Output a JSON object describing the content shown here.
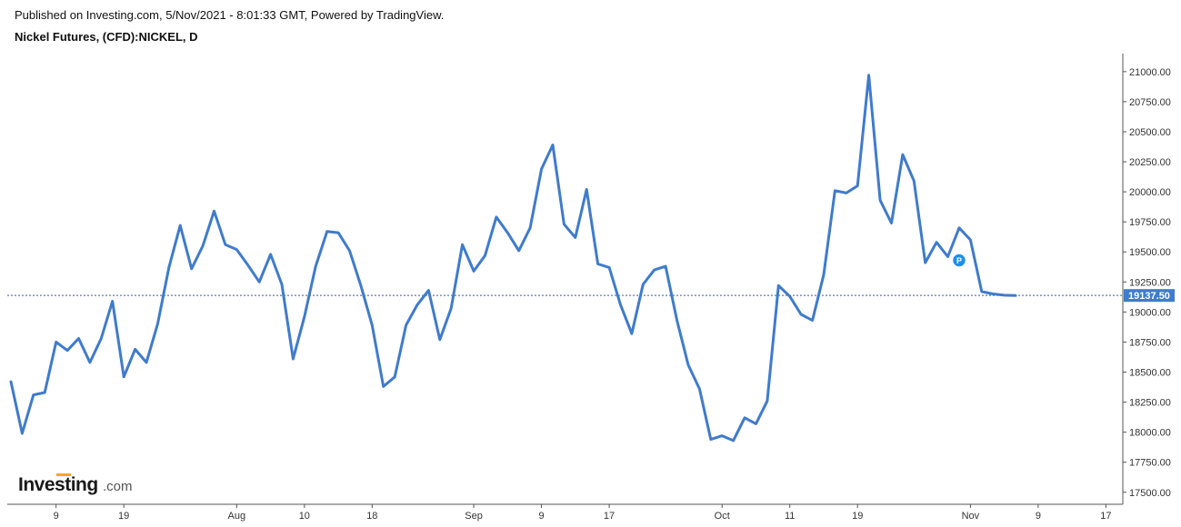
{
  "header": {
    "published": "Published on Investing.com, 5/Nov/2021 - 8:01:33 GMT, Powered by TradingView.",
    "title": "Nickel Futures, (CFD):NICKEL, D"
  },
  "logo": {
    "main": "Investing",
    "domain": ".com",
    "underline_color": "#f5a623"
  },
  "colors": {
    "line": "#3f7bce",
    "last_label_bg": "#3f7bce",
    "axis": "#555555",
    "marker": "#1e90e6"
  },
  "marker": {
    "label": "P",
    "x": 84,
    "y": 19430
  },
  "chart_data": {
    "type": "line",
    "title": "Nickel Futures, (CFD):NICKEL, D",
    "xlabel": "",
    "ylabel": "",
    "x_ticks": [
      {
        "x": 4,
        "label": "9"
      },
      {
        "x": 10,
        "label": "19"
      },
      {
        "x": 20,
        "label": "Aug"
      },
      {
        "x": 26,
        "label": "10"
      },
      {
        "x": 32,
        "label": "18"
      },
      {
        "x": 41,
        "label": "Sep"
      },
      {
        "x": 47,
        "label": "9"
      },
      {
        "x": 53,
        "label": "17"
      },
      {
        "x": 63,
        "label": "Oct"
      },
      {
        "x": 69,
        "label": "11"
      },
      {
        "x": 75,
        "label": "19"
      },
      {
        "x": 85,
        "label": "Nov"
      },
      {
        "x": 91,
        "label": "9"
      },
      {
        "x": 97,
        "label": "17"
      }
    ],
    "y_ticks": [
      {
        "value": 17500,
        "label": "17500.00"
      },
      {
        "value": 17750,
        "label": "17750.00"
      },
      {
        "value": 18000,
        "label": "18000.00"
      },
      {
        "value": 18250,
        "label": "18250.00"
      },
      {
        "value": 18500,
        "label": "18500.00"
      },
      {
        "value": 18750,
        "label": "18750.00"
      },
      {
        "value": 19000,
        "label": "19000.00"
      },
      {
        "value": 19250,
        "label": "19250.00"
      },
      {
        "value": 19500,
        "label": "19500.00"
      },
      {
        "value": 19750,
        "label": "19750.00"
      },
      {
        "value": 20000,
        "label": "20000.00"
      },
      {
        "value": 20250,
        "label": "20250.00"
      },
      {
        "value": 20500,
        "label": "20500.00"
      },
      {
        "value": 20750,
        "label": "20750.00"
      },
      {
        "value": 21000,
        "label": "21000.00"
      }
    ],
    "xlim": [
      0,
      98.5
    ],
    "ylim": [
      17400,
      21150
    ],
    "last_value": 19137.5,
    "last_value_label": "19137.50",
    "grid": false,
    "series": [
      {
        "x": [
          0,
          1,
          2,
          3,
          4,
          5,
          6,
          7,
          8,
          9,
          10,
          11,
          12,
          13,
          14,
          15,
          16,
          17,
          18,
          19,
          20,
          21,
          22,
          23,
          24,
          25,
          26,
          27,
          28,
          29,
          30,
          31,
          32,
          33,
          34,
          35,
          36,
          37,
          38,
          39,
          40,
          41,
          42,
          43,
          44,
          45,
          46,
          47,
          48,
          49,
          50,
          51,
          52,
          53,
          54,
          55,
          56,
          57,
          58,
          59,
          60,
          61,
          62,
          63,
          64,
          65,
          66,
          67,
          68,
          69,
          70,
          71,
          72,
          73,
          74,
          75,
          76,
          77,
          78,
          79,
          80,
          81,
          82,
          83,
          84,
          85,
          86,
          87,
          88,
          89
        ],
        "values": [
          18420,
          17990,
          18310,
          18330,
          18750,
          18680,
          18780,
          18580,
          18780,
          19090,
          18460,
          18690,
          18580,
          18900,
          19370,
          19720,
          19360,
          19550,
          19840,
          19560,
          19520,
          19390,
          19250,
          19480,
          19230,
          18610,
          18960,
          19380,
          19670,
          19660,
          19510,
          19220,
          18890,
          18380,
          18460,
          18890,
          19060,
          19180,
          18770,
          19030,
          19560,
          19340,
          19470,
          19790,
          19660,
          19510,
          19700,
          20190,
          20390,
          19730,
          19620,
          20020,
          19400,
          19370,
          19060,
          18820,
          19230,
          19350,
          19380,
          18930,
          18560,
          18360,
          17940,
          17970,
          17930,
          18120,
          18070,
          18260,
          19220,
          19130,
          18980,
          18930,
          19310,
          20010,
          19990,
          20050,
          20970,
          19930,
          19740,
          20310,
          20090,
          19410,
          19580,
          19460,
          19700,
          19600,
          19170,
          19150,
          19140,
          19137.5
        ]
      }
    ]
  }
}
